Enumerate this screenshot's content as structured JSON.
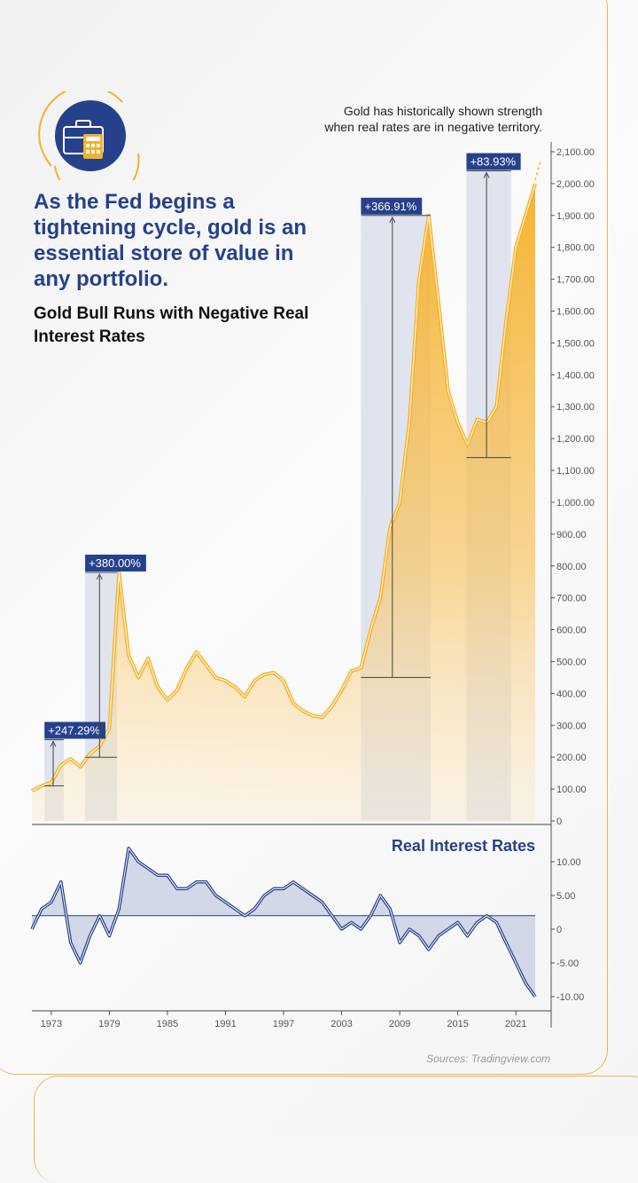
{
  "headline": "As the Fed begins a tightening cycle, gold is an essential store of value in any portfolio.",
  "subtitle": "Gold Bull Runs with Negative Real Interest Rates",
  "note_line1": "Gold has historically shown strength",
  "note_line2": "when real rates are in negative territory.",
  "source": "Sources: Tradingview.com",
  "icons": {
    "logo": "briefcase-calculator-icon"
  },
  "colors": {
    "gold": "#f5b027",
    "navy": "#26418c",
    "band": "#d7dcea"
  },
  "chart_data": [
    {
      "type": "area",
      "series": [
        {
          "name": "",
          "points": [
            [
              1971,
              95
            ],
            [
              1972,
              110
            ],
            [
              1973,
              120
            ],
            [
              1974,
              175
            ],
            [
              1975,
              195
            ],
            [
              1976,
              170
            ],
            [
              1977,
              210
            ],
            [
              1978,
              235
            ],
            [
              1979,
              290
            ],
            [
              1980,
              780
            ],
            [
              1981,
              520
            ],
            [
              1982,
              450
            ],
            [
              1983,
              510
            ],
            [
              1984,
              420
            ],
            [
              1985,
              380
            ],
            [
              1986,
              410
            ],
            [
              1987,
              480
            ],
            [
              1988,
              530
            ],
            [
              1989,
              490
            ],
            [
              1990,
              450
            ],
            [
              1991,
              440
            ],
            [
              1992,
              420
            ],
            [
              1993,
              390
            ],
            [
              1994,
              440
            ],
            [
              1995,
              460
            ],
            [
              1996,
              465
            ],
            [
              1997,
              440
            ],
            [
              1998,
              370
            ],
            [
              1999,
              345
            ],
            [
              2000,
              330
            ],
            [
              2001,
              325
            ],
            [
              2002,
              360
            ],
            [
              2003,
              410
            ],
            [
              2004,
              470
            ],
            [
              2005,
              480
            ],
            [
              2006,
              600
            ],
            [
              2007,
              700
            ],
            [
              2008,
              920
            ],
            [
              2009,
              1000
            ],
            [
              2010,
              1250
            ],
            [
              2011,
              1700
            ],
            [
              2012,
              1900
            ],
            [
              2013,
              1630
            ],
            [
              2014,
              1350
            ],
            [
              2015,
              1250
            ],
            [
              2016,
              1180
            ],
            [
              2017,
              1260
            ],
            [
              2018,
              1250
            ],
            [
              2019,
              1300
            ],
            [
              2020,
              1570
            ],
            [
              2021,
              1800
            ],
            [
              2022,
              1900
            ],
            [
              2023,
              2000
            ]
          ]
        }
      ],
      "bull_runs": [
        {
          "label": "+247.29%",
          "start": 1972.3,
          "end": 1974.3,
          "low": 110,
          "high": 255
        },
        {
          "label": "+380.00%",
          "start": 1976.5,
          "end": 1979.8,
          "low": 200,
          "high": 780
        },
        {
          "label": "+366.91%",
          "start": 2005.0,
          "end": 2012.2,
          "low": 450,
          "high": 1900
        },
        {
          "label": "+83.93%",
          "start": 2015.9,
          "end": 2020.5,
          "low": 1140,
          "high": 2040
        }
      ],
      "ylim": [
        0,
        2100
      ],
      "yticks": [
        "2,100.00",
        "2,000.00",
        "1,900.00",
        "1,800.00",
        "1,700.00",
        "1,600.00",
        "1,500.00",
        "1,400.00",
        "1,300.00",
        "1,200.00",
        "1,100.00",
        "1,000.00",
        "900.00",
        "800.00",
        "700.00",
        "600.00",
        "500.00",
        "400.00",
        "300.00",
        "200.00",
        "100.00",
        "0"
      ],
      "xlim": [
        1971,
        2023
      ],
      "legend": "none",
      "grid": false
    },
    {
      "type": "line",
      "title": "Real Interest Rates",
      "series": [
        {
          "name": "",
          "points": [
            [
              1971,
              0
            ],
            [
              1972,
              3
            ],
            [
              1973,
              4
            ],
            [
              1974,
              7
            ],
            [
              1975,
              -2
            ],
            [
              1976,
              -5
            ],
            [
              1977,
              -1
            ],
            [
              1978,
              2
            ],
            [
              1979,
              -1
            ],
            [
              1980,
              3
            ],
            [
              1981,
              12
            ],
            [
              1982,
              10
            ],
            [
              1983,
              9
            ],
            [
              1984,
              8
            ],
            [
              1985,
              8
            ],
            [
              1986,
              6
            ],
            [
              1987,
              6
            ],
            [
              1988,
              7
            ],
            [
              1989,
              7
            ],
            [
              1990,
              5
            ],
            [
              1991,
              4
            ],
            [
              1992,
              3
            ],
            [
              1993,
              2
            ],
            [
              1994,
              3
            ],
            [
              1995,
              5
            ],
            [
              1996,
              6
            ],
            [
              1997,
              6
            ],
            [
              1998,
              7
            ],
            [
              1999,
              6
            ],
            [
              2000,
              5
            ],
            [
              2001,
              4
            ],
            [
              2002,
              2
            ],
            [
              2003,
              0
            ],
            [
              2004,
              1
            ],
            [
              2005,
              0
            ],
            [
              2006,
              2
            ],
            [
              2007,
              5
            ],
            [
              2008,
              3
            ],
            [
              2009,
              -2
            ],
            [
              2010,
              0
            ],
            [
              2011,
              -1
            ],
            [
              2012,
              -3
            ],
            [
              2013,
              -1
            ],
            [
              2014,
              0
            ],
            [
              2015,
              1
            ],
            [
              2016,
              -1
            ],
            [
              2017,
              1
            ],
            [
              2018,
              2
            ],
            [
              2019,
              1
            ],
            [
              2020,
              -2
            ],
            [
              2021,
              -5
            ],
            [
              2022,
              -8
            ],
            [
              2023,
              -10
            ]
          ]
        }
      ],
      "baseline": 2,
      "ylim": [
        -10,
        12
      ],
      "yticks": [
        "10.00",
        "5.00",
        "0",
        "-5.00",
        "-10.00"
      ],
      "xticks": [
        "1973",
        "1979",
        "1985",
        "1991",
        "1997",
        "2003",
        "2009",
        "2015",
        "2021"
      ],
      "xlim": [
        1971,
        2023
      ],
      "legend": "none",
      "grid": false
    }
  ]
}
